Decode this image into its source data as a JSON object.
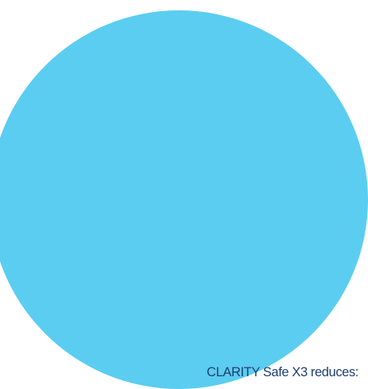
{
  "caption": {
    "text": "CLARITY Safe X3 reduces:"
  },
  "colors": {
    "circle_fill": "#5BCDF1",
    "caption_text": "#1F3E73",
    "background": "#FFFFFF"
  }
}
